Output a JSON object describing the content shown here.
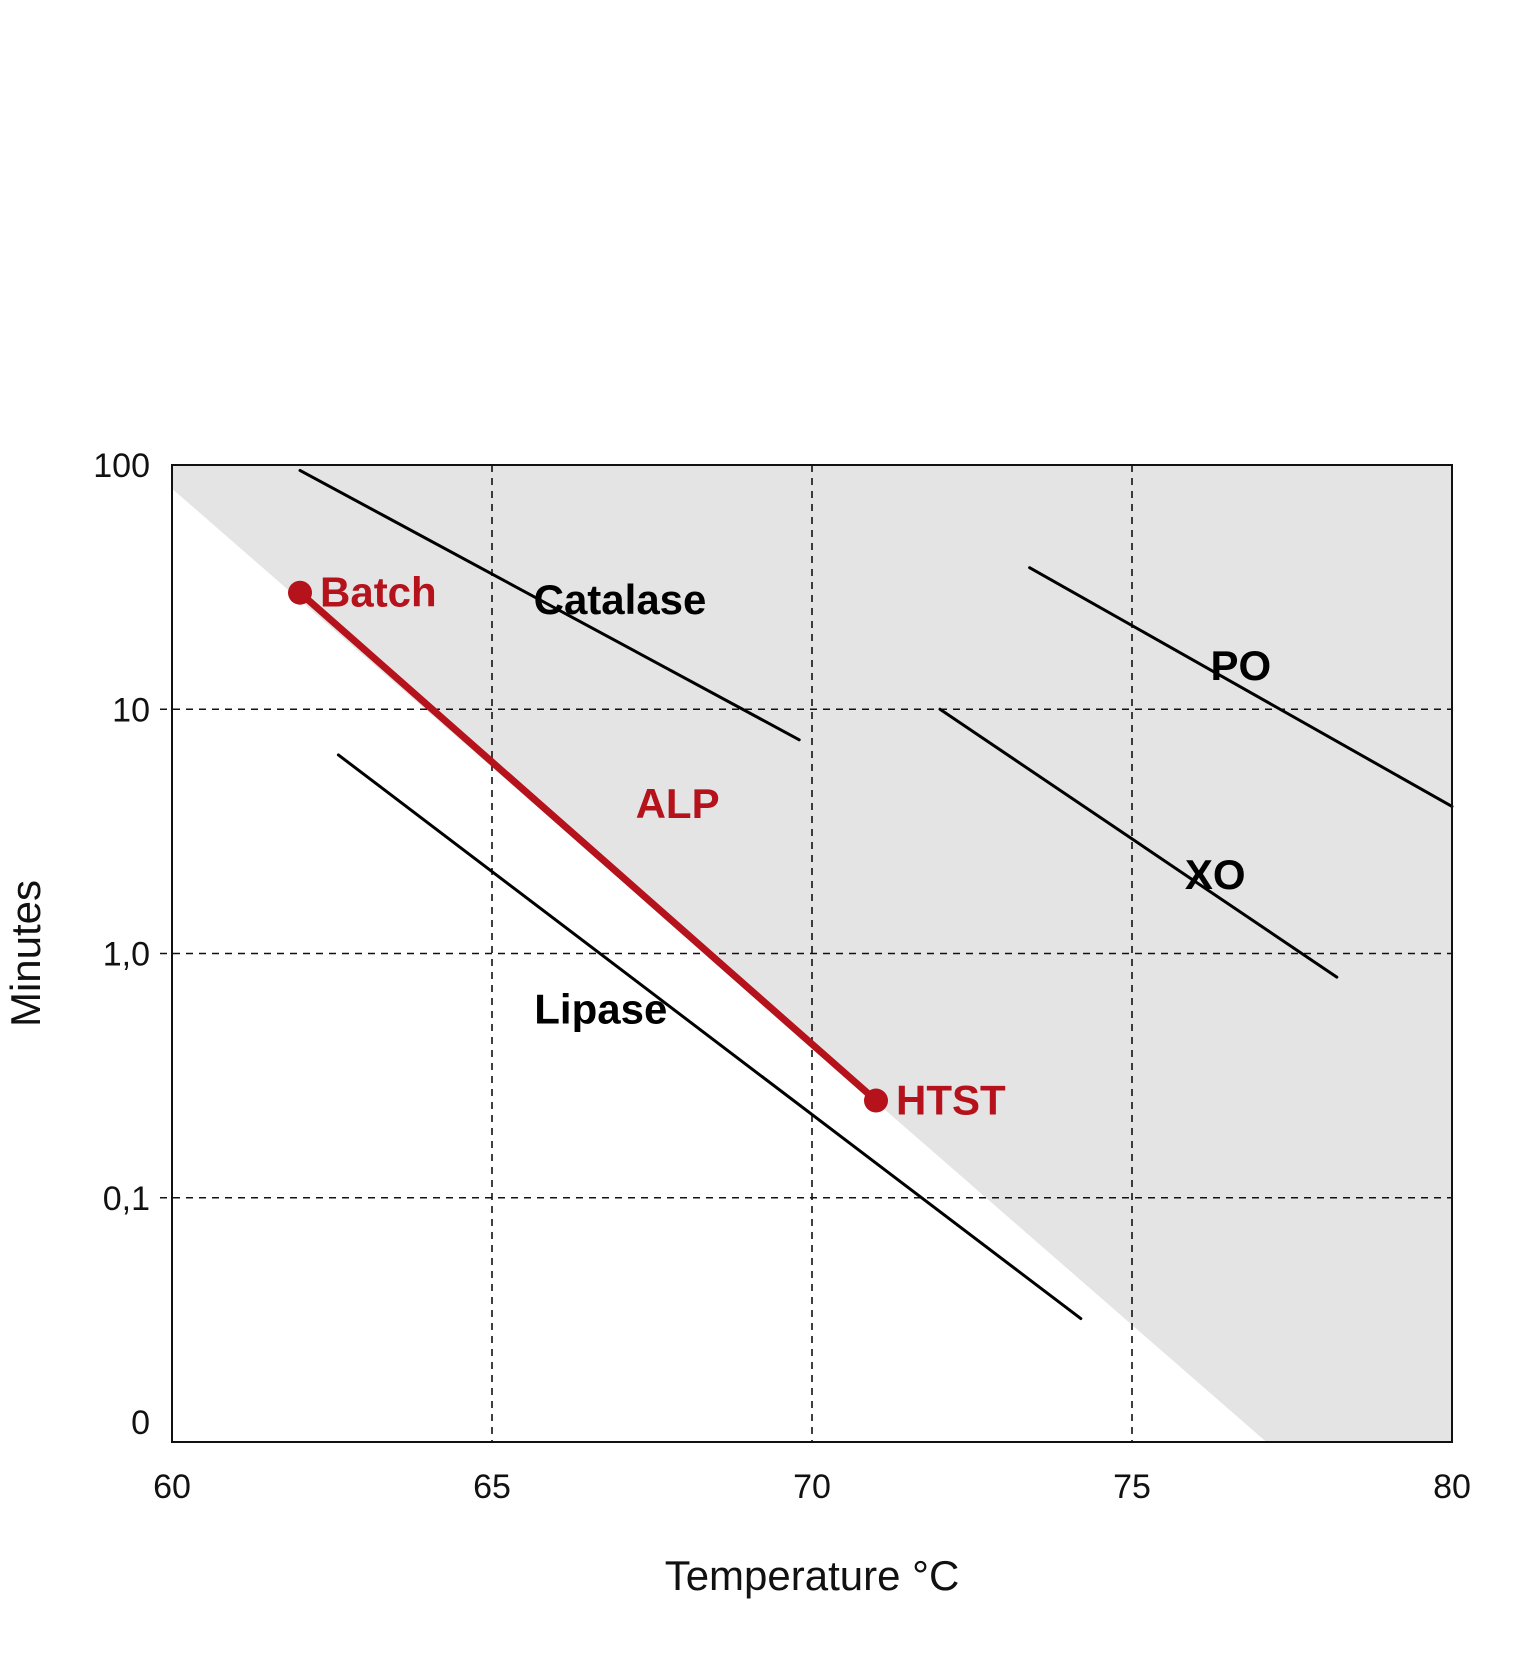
{
  "chart_data": {
    "type": "line",
    "xlabel": "Temperature °C",
    "ylabel": "Minutes",
    "xlim": [
      60,
      80
    ],
    "ylim": [
      0.01,
      100
    ],
    "y_scale": "log",
    "grid": true,
    "x_ticks": [
      {
        "value": 60,
        "label": "60"
      },
      {
        "value": 65,
        "label": "65"
      },
      {
        "value": 70,
        "label": "70"
      },
      {
        "value": 75,
        "label": "75"
      },
      {
        "value": 80,
        "label": "80"
      }
    ],
    "y_ticks": [
      {
        "value": 0.01,
        "label": "0"
      },
      {
        "value": 0.1,
        "label": "0,1"
      },
      {
        "value": 1,
        "label": "1,0"
      },
      {
        "value": 10,
        "label": "10"
      },
      {
        "value": 100,
        "label": "100"
      }
    ],
    "shaded_region": {
      "description_boundary": [
        {
          "x": 60,
          "y": 80
        },
        {
          "x": 77.1,
          "y": 0.01
        }
      ],
      "fill": "#e4e4e4"
    },
    "series": [
      {
        "name": "Catalase",
        "color": "#000000",
        "points": [
          {
            "x": 62.0,
            "y": 95
          },
          {
            "x": 69.8,
            "y": 7.5
          }
        ]
      },
      {
        "name": "PO",
        "color": "#000000",
        "points": [
          {
            "x": 73.4,
            "y": 38
          },
          {
            "x": 80.0,
            "y": 4.0
          }
        ]
      },
      {
        "name": "XO",
        "color": "#000000",
        "points": [
          {
            "x": 72.0,
            "y": 10
          },
          {
            "x": 78.2,
            "y": 0.8
          }
        ]
      },
      {
        "name": "Lipase",
        "color": "#000000",
        "points": [
          {
            "x": 62.6,
            "y": 6.5
          },
          {
            "x": 74.2,
            "y": 0.032
          }
        ]
      },
      {
        "name": "ALP",
        "color": "#b5121b",
        "points": [
          {
            "x": 62.0,
            "y": 30
          },
          {
            "x": 71.0,
            "y": 0.25
          }
        ]
      }
    ],
    "points": [
      {
        "label": "Batch",
        "x": 62.0,
        "y": 30,
        "color": "#b5121b"
      },
      {
        "label": "HTST",
        "x": 71.0,
        "y": 0.25,
        "color": "#b5121b"
      }
    ],
    "labels": [
      {
        "series": "Catalase",
        "text": "Catalase",
        "x": 67.0,
        "y": 28,
        "color": "#000000"
      },
      {
        "series": "PO",
        "text": "PO",
        "x": 76.7,
        "y": 15,
        "color": "#000000"
      },
      {
        "series": "XO",
        "text": "XO",
        "x": 76.3,
        "y": 2.1,
        "color": "#000000"
      },
      {
        "series": "Lipase",
        "text": "Lipase",
        "x": 66.7,
        "y": 0.59,
        "color": "#000000"
      },
      {
        "series": "ALP",
        "text": "ALP",
        "x": 67.9,
        "y": 4.1,
        "color": "#b5121b"
      }
    ]
  }
}
